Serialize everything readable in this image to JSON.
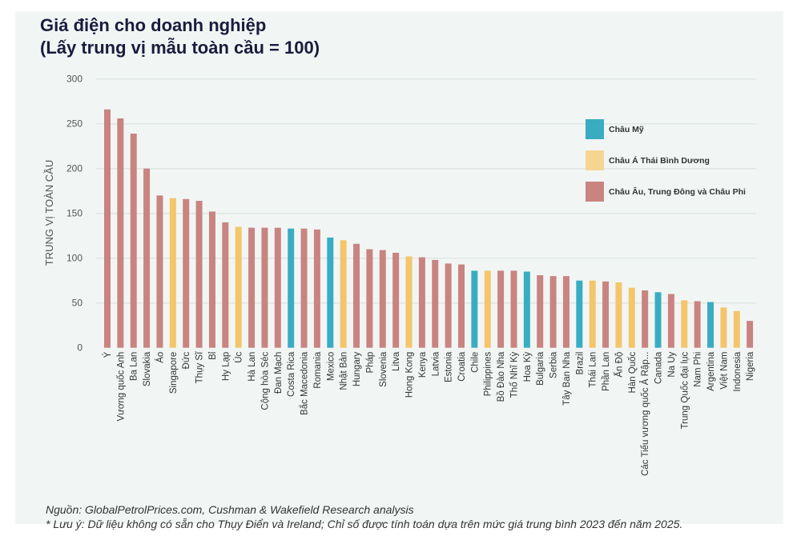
{
  "title": {
    "line1": "Giá điện cho doanh nghiệp",
    "line2": "(Lấy trung vị mẫu toàn cầu = 100)"
  },
  "footer": {
    "source": "Nguồn: GlobalPetrolPrices.com, Cushman & Wakefield Research analysis",
    "note": "* Lưu ý: Dữ liệu không có sẵn cho Thụy Điển và Ireland; Chỉ số được tính toán dựa trên mức giá trung bình 2023 đến năm 2025."
  },
  "colors": {
    "americas": "#3aacc2",
    "apac": "#f4c56a",
    "emea": "#c98480",
    "grid": "#dfe6e4",
    "background": "#f1f6f5"
  },
  "chart_data": {
    "type": "bar",
    "title": "Giá điện cho doanh nghiệp (Lấy trung vị mẫu toàn cầu = 100)",
    "xlabel": "",
    "ylabel": "TRUNG VỊ TOÀN CẦU",
    "ylim": [
      0,
      300
    ],
    "yticks": [
      0,
      50,
      100,
      150,
      200,
      250,
      300
    ],
    "grid": true,
    "legend_position": "top-right",
    "legend": [
      {
        "key": "americas",
        "label": "Châu Mỹ"
      },
      {
        "key": "apac",
        "label": "Châu Á Thái Bình Dương"
      },
      {
        "key": "emea",
        "label": "Châu Âu, Trung Đông và Châu Phi"
      }
    ],
    "categories": [
      "Ý",
      "Vương quốc Anh",
      "Ba Lan",
      "Slovakia",
      "Áo",
      "Singapore",
      "Đức",
      "Thụy Sĩ",
      "Bỉ",
      "Hy Lạp",
      "Úc",
      "Hà Lan",
      "Cộng hòa Séc",
      "Đan Mạch",
      "Costa Rica",
      "Bắc Macedonia",
      "Romania",
      "Mexico",
      "Nhật Bản",
      "Hungary",
      "Pháp",
      "Slovenia",
      "Litva",
      "Hong Kong",
      "Kenya",
      "Latvia",
      "Estonia",
      "Croatia",
      "Chile",
      "Philippines",
      "Bồ Đào Nha",
      "Thổ Nhĩ Kỳ",
      "Hoa Kỳ",
      "Bulgaria",
      "Serbia",
      "Tây Ban Nha",
      "Brazil",
      "Thái Lan",
      "Phần Lan",
      "Ấn Độ",
      "Hàn Quốc",
      "Các Tiểu vương quốc Ả Rập...",
      "Canada",
      "Na Uy",
      "Trung Quốc đại lục",
      "Nam Phi",
      "Argentina",
      "Việt Nam",
      "Indonesia",
      "Nigeria"
    ],
    "values": [
      266,
      256,
      239,
      200,
      170,
      167,
      166,
      164,
      152,
      140,
      135,
      134,
      134,
      134,
      133,
      133,
      132,
      123,
      120,
      116,
      110,
      109,
      106,
      102,
      101,
      98,
      94,
      93,
      86,
      86,
      86,
      86,
      85,
      81,
      80,
      80,
      75,
      75,
      74,
      73,
      67,
      64,
      62,
      60,
      53,
      52,
      51,
      45,
      41,
      30
    ],
    "regions": [
      "emea",
      "emea",
      "emea",
      "emea",
      "emea",
      "apac",
      "emea",
      "emea",
      "emea",
      "emea",
      "apac",
      "emea",
      "emea",
      "emea",
      "americas",
      "emea",
      "emea",
      "americas",
      "apac",
      "emea",
      "emea",
      "emea",
      "emea",
      "apac",
      "emea",
      "emea",
      "emea",
      "emea",
      "americas",
      "apac",
      "emea",
      "emea",
      "americas",
      "emea",
      "emea",
      "emea",
      "americas",
      "apac",
      "emea",
      "apac",
      "apac",
      "emea",
      "americas",
      "emea",
      "apac",
      "emea",
      "americas",
      "apac",
      "apac",
      "emea"
    ]
  }
}
